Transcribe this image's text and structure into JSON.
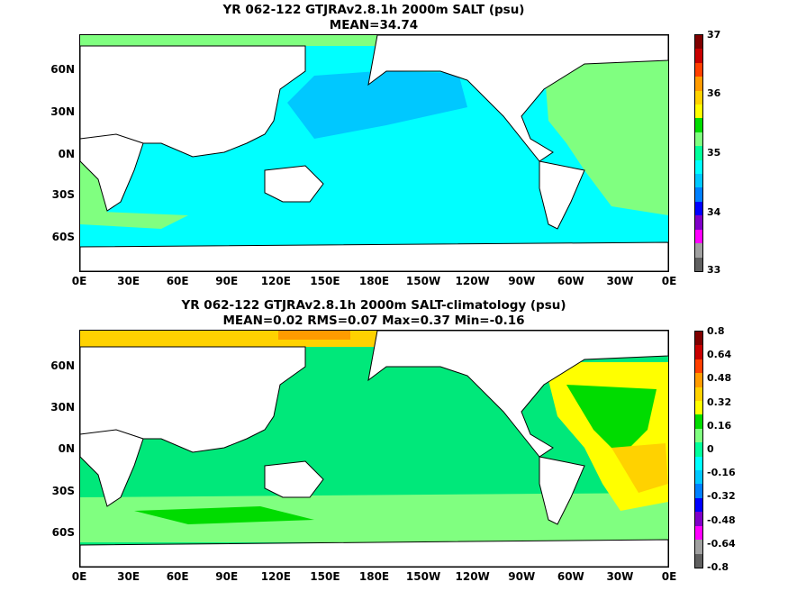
{
  "panel1": {
    "title": "YR 062-122 GTJRAv2.8.1h 2000m SALT (psu)",
    "subtitle": "MEAN=34.74",
    "y_labels": [
      "60N",
      "30N",
      "0N",
      "30S",
      "60S"
    ],
    "x_labels": [
      "0E",
      "30E",
      "60E",
      "90E",
      "120E",
      "150E",
      "180E",
      "150W",
      "120W",
      "90W",
      "60W",
      "30W",
      "0E"
    ],
    "colorbar_labels": [
      "37",
      "36",
      "35",
      "34",
      "33"
    ],
    "colorbar_colors": [
      "#7f0000",
      "#c80000",
      "#ff4000",
      "#ff9b00",
      "#ffd200",
      "#ffff00",
      "#00dc00",
      "#80ff80",
      "#00ff9b",
      "#00ffff",
      "#00c8ff",
      "#0080ff",
      "#0000ff",
      "#8000c8",
      "#ff00ff",
      "#a0a0a0",
      "#606060"
    ]
  },
  "panel2": {
    "title": "YR 062-122 GTJRAv2.8.1h 2000m SALT-climatology (psu)",
    "subtitle": "MEAN=0.02   RMS=0.07   Max=0.37   Min=-0.16",
    "y_labels": [
      "60N",
      "30N",
      "0N",
      "30S",
      "60S"
    ],
    "x_labels": [
      "0E",
      "30E",
      "60E",
      "90E",
      "120E",
      "150E",
      "180E",
      "150W",
      "120W",
      "90W",
      "60W",
      "30W",
      "0E"
    ],
    "colorbar_labels": [
      "0.8",
      "0.64",
      "0.48",
      "0.32",
      "0.16",
      "0",
      "-0.16",
      "-0.32",
      "-0.48",
      "-0.64",
      "-0.8"
    ],
    "colorbar_colors": [
      "#7f0000",
      "#c80000",
      "#ff4000",
      "#ff9b00",
      "#ffd200",
      "#ffff00",
      "#00dc00",
      "#80ff80",
      "#00ff9b",
      "#00ffff",
      "#00c8ff",
      "#0080ff",
      "#0000ff",
      "#8000c8",
      "#ff00ff",
      "#a0a0a0",
      "#606060"
    ]
  },
  "colors": {
    "land": "#ffffff",
    "coast": "#000000",
    "ocean_35": "#00ffff",
    "ocean_34_5": "#00c8ff",
    "ocean_35_2": "#80ff80",
    "anom_zero": "#00e87a",
    "anom_low": "#80ff80",
    "anom_high": "#ffff00"
  }
}
